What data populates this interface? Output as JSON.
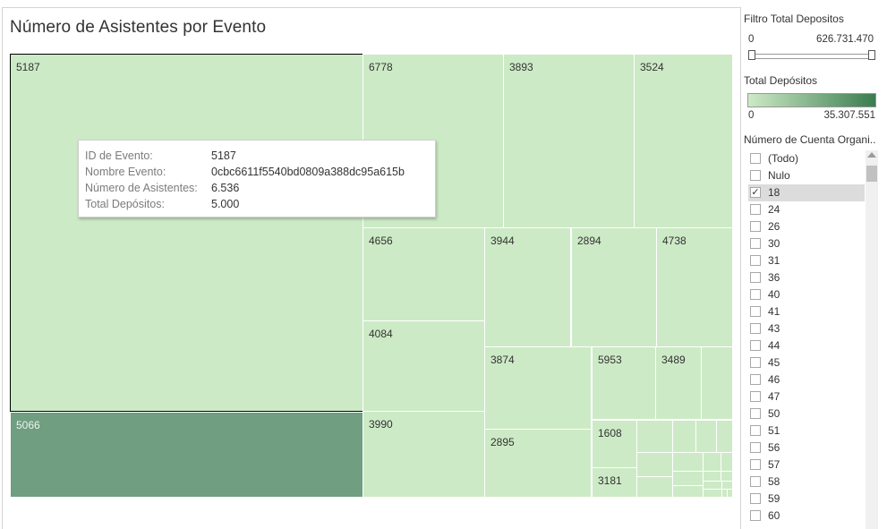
{
  "viz": {
    "title": "Número de Asistentes por Evento"
  },
  "tiles": [
    {
      "label": "5187",
      "selected": true
    },
    {
      "label": "5066",
      "dark": true
    },
    {
      "label": "6778"
    },
    {
      "label": "3893"
    },
    {
      "label": "3524"
    },
    {
      "label": "4656"
    },
    {
      "label": "4084"
    },
    {
      "label": "3990"
    },
    {
      "label": "3944"
    },
    {
      "label": "2894"
    },
    {
      "label": "4738"
    },
    {
      "label": "3874"
    },
    {
      "label": "5953"
    },
    {
      "label": "3489"
    },
    {
      "label": "2895"
    },
    {
      "label": "1608"
    },
    {
      "label": "3181"
    }
  ],
  "tooltip": {
    "rows": [
      {
        "key": "ID de Evento:",
        "value": "5187"
      },
      {
        "key": "Nombre Evento:",
        "value": "0cbc6611f5540bd0809a388dc95a615b"
      },
      {
        "key": "Número de Asistentes:",
        "value": "6.536"
      },
      {
        "key": "Total Depósitos:",
        "value": "5.000"
      }
    ]
  },
  "filters": {
    "total_filter": {
      "title": "Filtro Total Depositos",
      "min": "0",
      "max": "626.731.470"
    },
    "legend": {
      "title": "Total Depósitos",
      "min": "0",
      "max": "35.307.551",
      "color_low": "#cdeac6",
      "color_high": "#3a7c4f"
    },
    "account": {
      "title": "Número de Cuenta Organi..",
      "options": [
        {
          "label": "(Todo)",
          "checked": false
        },
        {
          "label": "Nulo",
          "checked": false
        },
        {
          "label": "18",
          "checked": true
        },
        {
          "label": "24",
          "checked": false
        },
        {
          "label": "26",
          "checked": false
        },
        {
          "label": "30",
          "checked": false
        },
        {
          "label": "31",
          "checked": false
        },
        {
          "label": "36",
          "checked": false
        },
        {
          "label": "40",
          "checked": false
        },
        {
          "label": "41",
          "checked": false
        },
        {
          "label": "43",
          "checked": false
        },
        {
          "label": "44",
          "checked": false
        },
        {
          "label": "45",
          "checked": false
        },
        {
          "label": "46",
          "checked": false
        },
        {
          "label": "47",
          "checked": false
        },
        {
          "label": "50",
          "checked": false
        },
        {
          "label": "51",
          "checked": false
        },
        {
          "label": "56",
          "checked": false
        },
        {
          "label": "57",
          "checked": false
        },
        {
          "label": "58",
          "checked": false
        },
        {
          "label": "59",
          "checked": false
        },
        {
          "label": "60",
          "checked": false
        }
      ]
    }
  }
}
